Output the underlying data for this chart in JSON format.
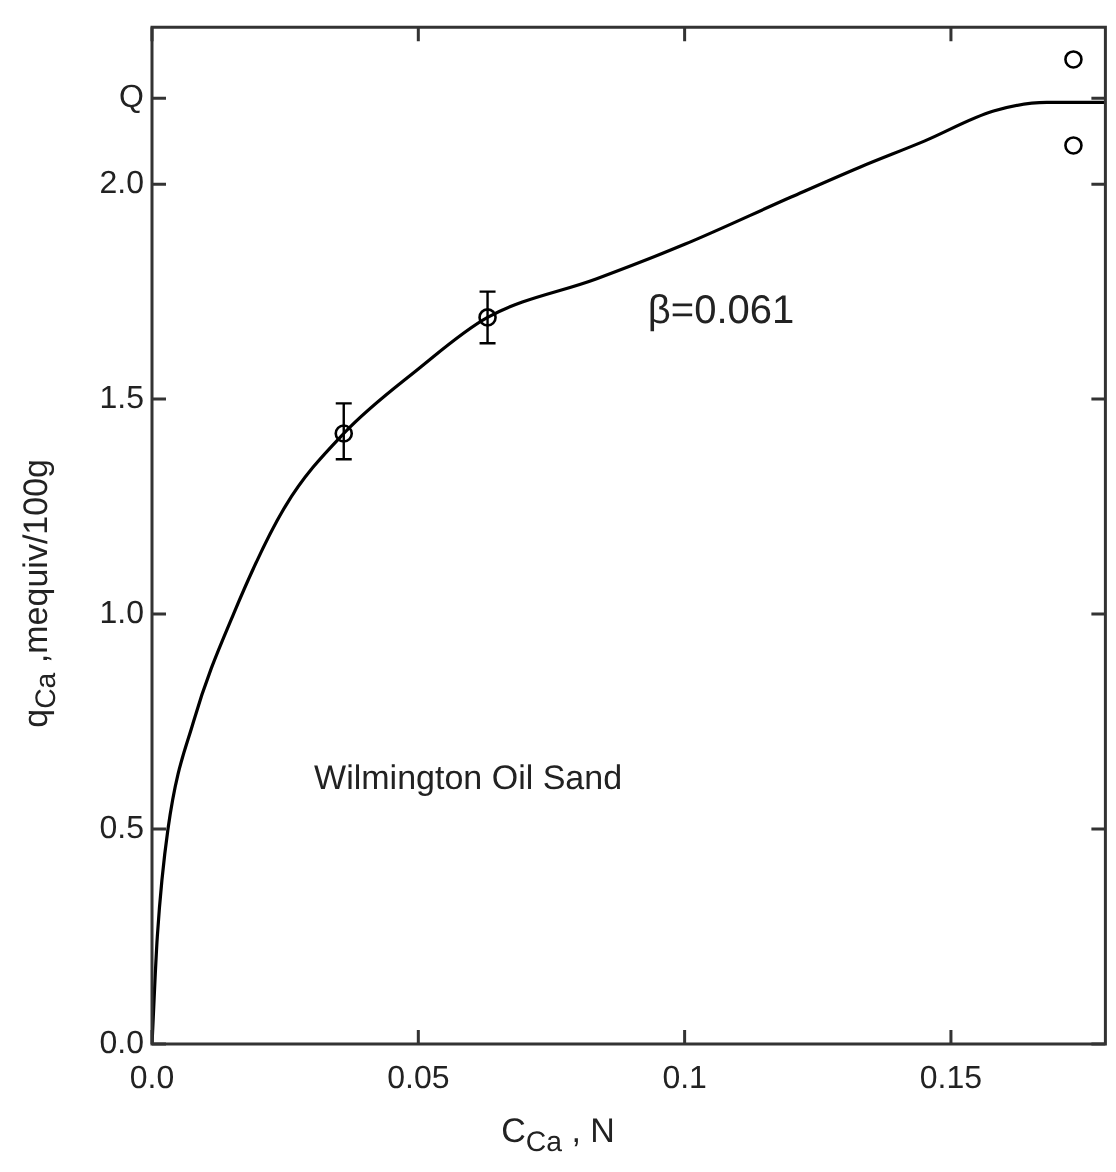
{
  "chart_data": {
    "type": "line",
    "xlabel": "C$_{Ca}$ , N",
    "ylabel": "q$_{Ca}$ ,mequiv/100g",
    "annotations": [
      "β=0.061",
      "Wilmington Oil Sand"
    ],
    "xlim": [
      0,
      0.179
    ],
    "xticks": [
      {
        "value": 0,
        "label": "0.0"
      },
      0.05,
      0.1,
      0.15
    ],
    "ylim": [
      0,
      2.365
    ],
    "yticks": [
      {
        "value": 0,
        "label": "0.0"
      },
      0.5,
      {
        "value": 1,
        "label": "1.0"
      },
      1.5,
      {
        "value": 2,
        "label": "2.0"
      },
      {
        "value": 2.2,
        "label": "Q"
      }
    ],
    "grid": false,
    "legend": false,
    "series": [
      {
        "type": "line",
        "color": "#000000",
        "marker": "none",
        "line_style": "solid",
        "x": [
          0,
          0.001,
          0.003,
          0.0078,
          0.0153,
          0.025,
          0.036,
          0.05,
          0.063,
          0.0835,
          0.1,
          0.12,
          0.133,
          0.145,
          0.158,
          0.168,
          0.179
        ],
        "values": [
          0,
          0.25,
          0.5,
          0.75,
          1.0,
          1.25,
          1.42,
          1.57,
          1.69,
          1.78,
          1.86,
          1.97,
          2.04,
          2.1,
          2.17,
          2.19,
          2.19
        ]
      },
      {
        "type": "scatter",
        "color": "#000000",
        "marker": "circle",
        "x": [
          0.036,
          0.063,
          0.173,
          0.173
        ],
        "values": [
          1.42,
          1.69,
          2.29,
          2.09
        ],
        "errors": [
          [
            1.36,
            1.49
          ],
          [
            1.63,
            1.75
          ],
          null,
          null
        ]
      }
    ]
  }
}
